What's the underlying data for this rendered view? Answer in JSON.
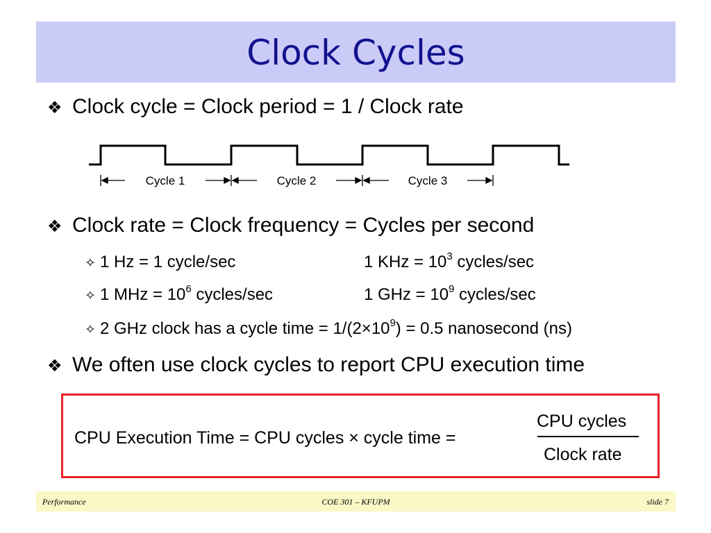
{
  "title": "Clock Cycles",
  "bullets": [
    "Clock cycle = Clock period = 1 / Clock rate",
    "Clock rate = Clock frequency = Cycles per second",
    "We often use clock cycles to report CPU execution time"
  ],
  "cycle_labels": [
    "Cycle 1",
    "Cycle 2",
    "Cycle 3"
  ],
  "sub_items": {
    "hz": "1 Hz = 1 cycle/sec",
    "khz_prefix": "1 KHz = 10",
    "khz_exp": "3",
    "khz_suffix": " cycles/sec",
    "mhz_prefix": "1 MHz = 10",
    "mhz_exp": "6",
    "mhz_suffix": " cycles/sec",
    "ghz_prefix": "1 GHz = 10",
    "ghz_exp": "9",
    "ghz_suffix": " cycles/sec",
    "ns_prefix": "2 GHz clock has a cycle time = 1/(2×10",
    "ns_exp": "9",
    "ns_suffix": ") = 0.5 nanosecond (ns)"
  },
  "formula": {
    "lhs": "CPU Execution Time  =  CPU cycles × cycle time  =",
    "numerator": "CPU cycles",
    "denominator": "Clock rate"
  },
  "footer": {
    "left": "Performance",
    "center": "COE 301 – KFUPM",
    "right": "slide 7"
  },
  "colors": {
    "title_bg": "#cbcbf7",
    "title_text": "#12128f",
    "box_border": "#e8212b",
    "footer_bg": "#f9f8c6"
  }
}
